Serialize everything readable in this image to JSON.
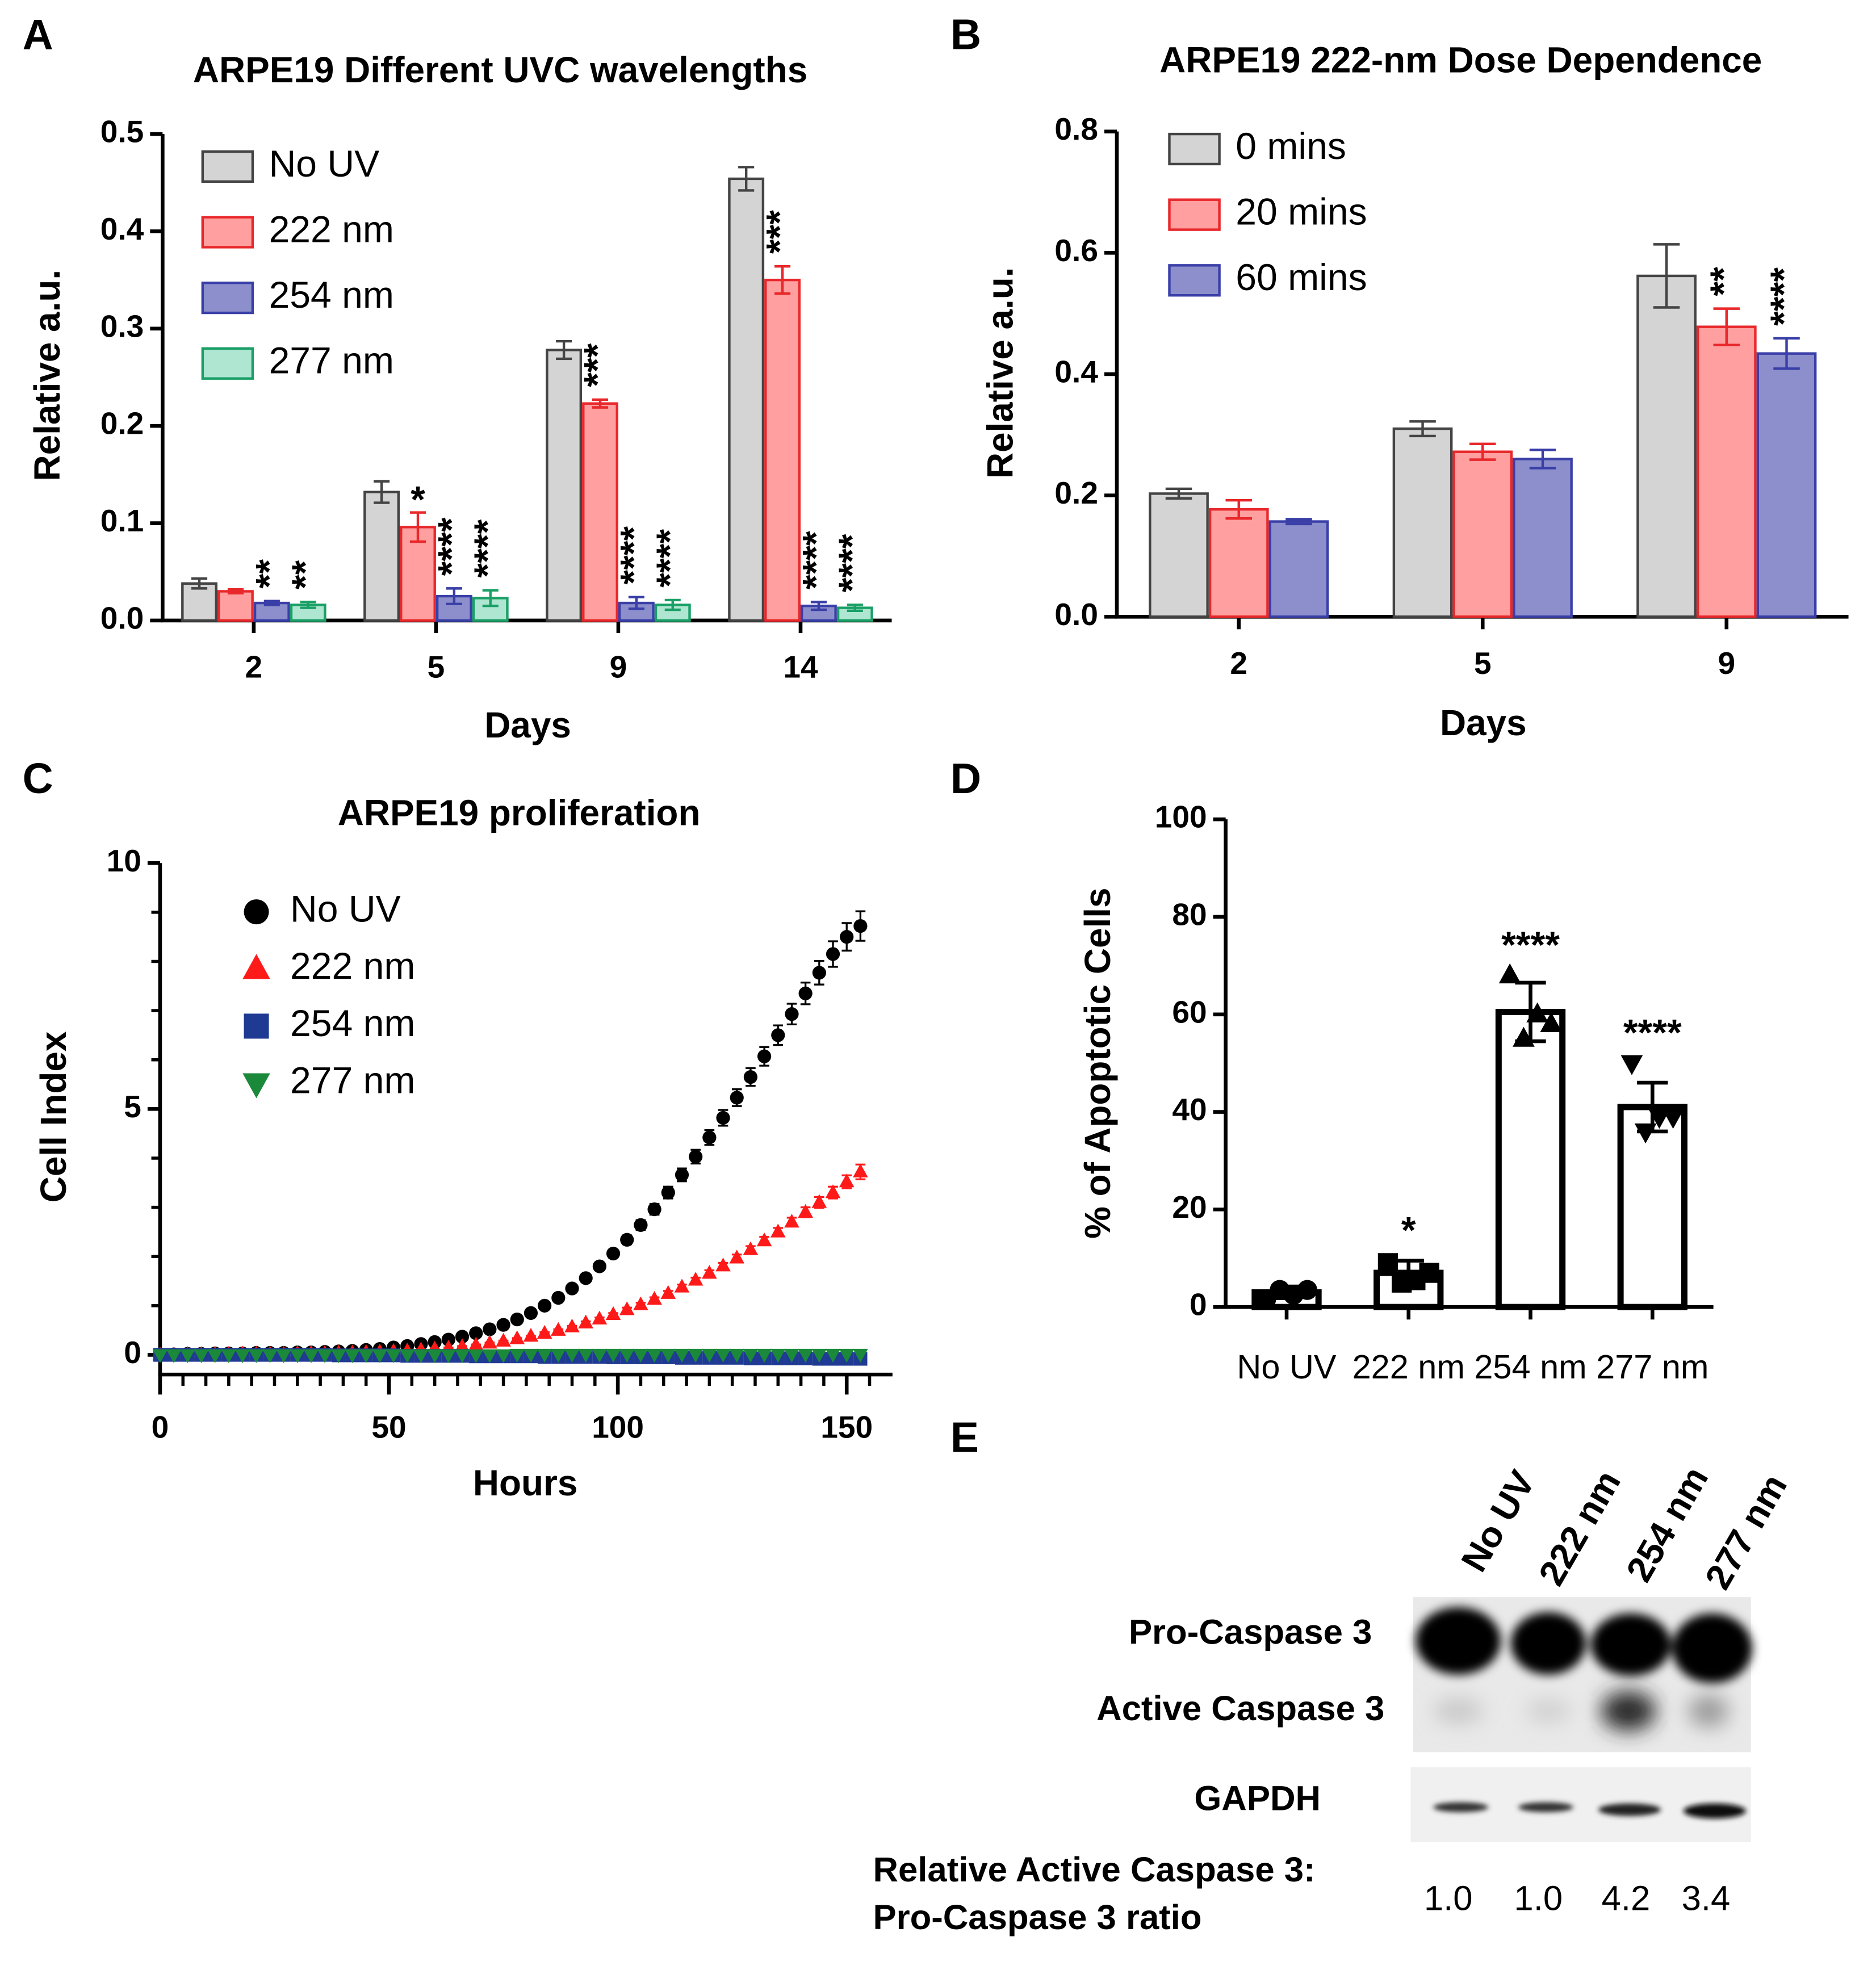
{
  "chart_data": [
    {
      "type": "bar",
      "label": "A",
      "title": "ARPE19 Different UVC wavelengths",
      "xlabel": "Days",
      "ylabel": "Relative a.u.",
      "categories": [
        "2",
        "5",
        "9",
        "14"
      ],
      "series": [
        {
          "name": "No UV",
          "color": "#d4d4d4",
          "edgecolor": "#444444",
          "values": [
            0.038,
            0.132,
            0.278,
            0.454
          ],
          "errors": [
            0.005,
            0.011,
            0.009,
            0.012
          ],
          "annotations": [
            null,
            null,
            null,
            null
          ]
        },
        {
          "name": "222 nm",
          "color": "#ff9f9f",
          "edgecolor": "#e8282b",
          "values": [
            0.03,
            0.096,
            0.223,
            0.35
          ],
          "errors": [
            0.002,
            0.015,
            0.004,
            0.014
          ],
          "annotations": [
            null,
            "*",
            "***",
            "***"
          ]
        },
        {
          "name": "254 nm",
          "color": "#8d8fcc",
          "edgecolor": "#3a3fa8",
          "values": [
            0.018,
            0.025,
            0.018,
            0.015
          ],
          "errors": [
            0.002,
            0.008,
            0.006,
            0.004
          ],
          "annotations": [
            "**",
            "****",
            "****",
            "****"
          ]
        },
        {
          "name": "277 nm",
          "color": "#aee6d2",
          "edgecolor": "#1aa067",
          "values": [
            0.016,
            0.023,
            0.016,
            0.013
          ],
          "errors": [
            0.003,
            0.008,
            0.005,
            0.003
          ],
          "annotations": [
            "**",
            "****",
            "****",
            "****"
          ]
        }
      ],
      "ylim": [
        0,
        0.5
      ],
      "yticks": [
        {
          "value": 0,
          "label": "0.0"
        },
        0.1,
        0.2,
        0.3,
        0.4,
        0.5
      ],
      "legend": "upper left"
    },
    {
      "type": "bar",
      "label": "B",
      "title": "ARPE19 222-nm Dose Dependence",
      "xlabel": "Days",
      "ylabel": "Relative a.u.",
      "categories": [
        "2",
        "5",
        "9"
      ],
      "series": [
        {
          "name": "0 mins",
          "color": "#d4d4d4",
          "edgecolor": "#444444",
          "values": [
            0.203,
            0.31,
            0.562
          ],
          "errors": [
            0.008,
            0.012,
            0.052
          ],
          "annotations": [
            null,
            null,
            null
          ]
        },
        {
          "name": "20 mins",
          "color": "#ff9f9f",
          "edgecolor": "#e8282b",
          "values": [
            0.177,
            0.272,
            0.478
          ],
          "errors": [
            0.015,
            0.013,
            0.03
          ],
          "annotations": [
            null,
            null,
            "**"
          ]
        },
        {
          "name": "60 mins",
          "color": "#8d8fcc",
          "edgecolor": "#3a3fa8",
          "values": [
            0.157,
            0.26,
            0.434
          ],
          "errors": [
            0.004,
            0.015,
            0.025
          ],
          "annotations": [
            null,
            null,
            "****"
          ]
        }
      ],
      "ylim": [
        0,
        0.8
      ],
      "yticks": [
        {
          "value": 0,
          "label": "0.0"
        },
        0.2,
        0.4,
        0.6,
        0.8
      ],
      "legend": "upper left"
    },
    {
      "type": "scatter",
      "label": "C",
      "title": "ARPE19 proliferation",
      "xlabel": "Hours",
      "ylabel": "Cell Index",
      "x": [
        0,
        3,
        6,
        9,
        12,
        15,
        18,
        21,
        24,
        27,
        30,
        33,
        36,
        39,
        42,
        45,
        48,
        51,
        54,
        57,
        60,
        63,
        66,
        69,
        72,
        75,
        78,
        81,
        84,
        87,
        90,
        93,
        96,
        99,
        102,
        105,
        108,
        111,
        114,
        117,
        120,
        123,
        126,
        129,
        132,
        135,
        138,
        141,
        144,
        147,
        150,
        153
      ],
      "series": [
        {
          "name": "No UV",
          "color": "#000000",
          "marker": "circle",
          "values": [
            0.0,
            0.01,
            0.02,
            0.02,
            0.03,
            0.03,
            0.03,
            0.04,
            0.04,
            0.04,
            0.05,
            0.05,
            0.06,
            0.07,
            0.08,
            0.1,
            0.12,
            0.15,
            0.18,
            0.22,
            0.26,
            0.31,
            0.37,
            0.44,
            0.52,
            0.61,
            0.72,
            0.85,
            1.0,
            1.16,
            1.35,
            1.56,
            1.8,
            2.06,
            2.34,
            2.64,
            2.96,
            3.3,
            3.66,
            4.03,
            4.42,
            4.82,
            5.23,
            5.65,
            6.07,
            6.5,
            6.93,
            7.35,
            7.77,
            8.15,
            8.5,
            8.72
          ],
          "errors": [
            0.01,
            0.01,
            0.01,
            0.01,
            0.01,
            0.01,
            0.01,
            0.01,
            0.01,
            0.01,
            0.01,
            0.01,
            0.01,
            0.01,
            0.01,
            0.01,
            0.01,
            0.01,
            0.01,
            0.01,
            0.01,
            0.01,
            0.01,
            0.01,
            0.01,
            0.01,
            0.02,
            0.03,
            0.03,
            0.04,
            0.05,
            0.06,
            0.07,
            0.08,
            0.09,
            0.1,
            0.11,
            0.12,
            0.13,
            0.14,
            0.15,
            0.16,
            0.17,
            0.18,
            0.19,
            0.2,
            0.21,
            0.22,
            0.24,
            0.26,
            0.28,
            0.3
          ]
        },
        {
          "name": "222 nm",
          "color": "#ff1a1a",
          "marker": "triangle-up",
          "values": [
            0.0,
            0.0,
            0.01,
            0.01,
            0.01,
            0.01,
            0.02,
            0.02,
            0.02,
            0.02,
            0.03,
            0.03,
            0.03,
            0.04,
            0.04,
            0.05,
            0.06,
            0.07,
            0.08,
            0.1,
            0.12,
            0.14,
            0.17,
            0.2,
            0.24,
            0.28,
            0.33,
            0.38,
            0.44,
            0.5,
            0.57,
            0.65,
            0.73,
            0.82,
            0.92,
            1.02,
            1.13,
            1.25,
            1.38,
            1.52,
            1.66,
            1.81,
            1.97,
            2.14,
            2.32,
            2.5,
            2.7,
            2.9,
            3.1,
            3.3,
            3.52,
            3.72
          ],
          "errors": [
            0.01,
            0.01,
            0.01,
            0.01,
            0.01,
            0.01,
            0.01,
            0.01,
            0.01,
            0.01,
            0.01,
            0.01,
            0.01,
            0.01,
            0.01,
            0.01,
            0.01,
            0.01,
            0.01,
            0.01,
            0.01,
            0.01,
            0.01,
            0.01,
            0.01,
            0.01,
            0.01,
            0.01,
            0.02,
            0.02,
            0.02,
            0.03,
            0.03,
            0.03,
            0.04,
            0.04,
            0.04,
            0.05,
            0.05,
            0.05,
            0.06,
            0.06,
            0.07,
            0.07,
            0.08,
            0.08,
            0.09,
            0.1,
            0.11,
            0.12,
            0.13,
            0.15
          ]
        },
        {
          "name": "254 nm",
          "color": "#1f3a93",
          "marker": "square",
          "values": [
            0,
            0,
            0,
            0,
            0,
            0,
            0,
            0,
            0,
            0,
            0,
            0,
            0,
            -0.01,
            -0.01,
            -0.01,
            -0.01,
            -0.01,
            -0.02,
            -0.02,
            -0.02,
            -0.02,
            -0.02,
            -0.03,
            -0.03,
            -0.03,
            -0.03,
            -0.03,
            -0.04,
            -0.04,
            -0.04,
            -0.04,
            -0.04,
            -0.05,
            -0.05,
            -0.05,
            -0.05,
            -0.05,
            -0.06,
            -0.06,
            -0.06,
            -0.06,
            -0.06,
            -0.07,
            -0.07,
            -0.07,
            -0.07,
            -0.07,
            -0.08,
            -0.08,
            -0.08,
            -0.08
          ]
        },
        {
          "name": "277 nm",
          "color": "#1a8a3a",
          "marker": "triangle-down",
          "values": [
            0,
            0,
            0,
            0,
            0,
            0,
            0,
            0,
            0,
            0,
            0,
            0,
            0,
            0,
            0,
            0,
            0,
            0,
            0,
            0,
            0,
            0,
            0,
            0,
            0,
            0,
            0.01,
            0.01,
            0.01,
            0.01,
            0.01,
            0.01,
            0.01,
            0.01,
            0.01,
            0.01,
            0.01,
            0.01,
            0.01,
            0.01,
            0.01,
            0.01,
            0.01,
            0.01,
            0.01,
            0.01,
            0.01,
            0.01,
            0.01,
            0.01,
            0.01,
            0.01
          ]
        }
      ],
      "xlim": [
        0,
        160
      ],
      "xticks": [
        0,
        50,
        100,
        150
      ],
      "ylim": [
        -0.4,
        10
      ],
      "yticks": [
        0,
        5,
        10
      ],
      "legend": "upper left"
    },
    {
      "type": "bar",
      "label": "D",
      "ylabel": "% of Apoptotic Cells",
      "categories": [
        "No UV",
        "222 nm",
        "254 nm",
        "277 nm"
      ],
      "series": [
        {
          "color": "#ffffff",
          "edgecolor": "#000000",
          "values": [
            3,
            7,
            60.5,
            41
          ],
          "errors": [
            1.2,
            2.5,
            6,
            5
          ],
          "annotations": [
            null,
            "*",
            "****",
            "****"
          ],
          "markers": [
            "circle",
            "square",
            "triangle-up",
            "triangle-down"
          ],
          "points": [
            [
              1.5,
              3.5,
              2.5,
              3.5
            ],
            [
              9,
              5,
              5.5,
              7
            ],
            [
              68,
              55,
              60,
              58
            ],
            [
              50,
              36,
              39,
              39
            ]
          ]
        }
      ],
      "ylim": [
        0,
        100
      ],
      "yticks": [
        0,
        20,
        40,
        60,
        80,
        100
      ]
    }
  ],
  "blot": {
    "label": "E",
    "lanes": [
      "No UV",
      "222 nm",
      "254 nm",
      "277 nm"
    ],
    "rows": [
      "Pro-Caspase 3",
      "Active Caspase 3",
      "GAPDH"
    ],
    "ratio_label": [
      "Relative Active Caspase 3:",
      "Pro-Caspase 3 ratio"
    ],
    "ratios": [
      "1.0",
      "1.0",
      "4.2",
      "3.4"
    ]
  }
}
